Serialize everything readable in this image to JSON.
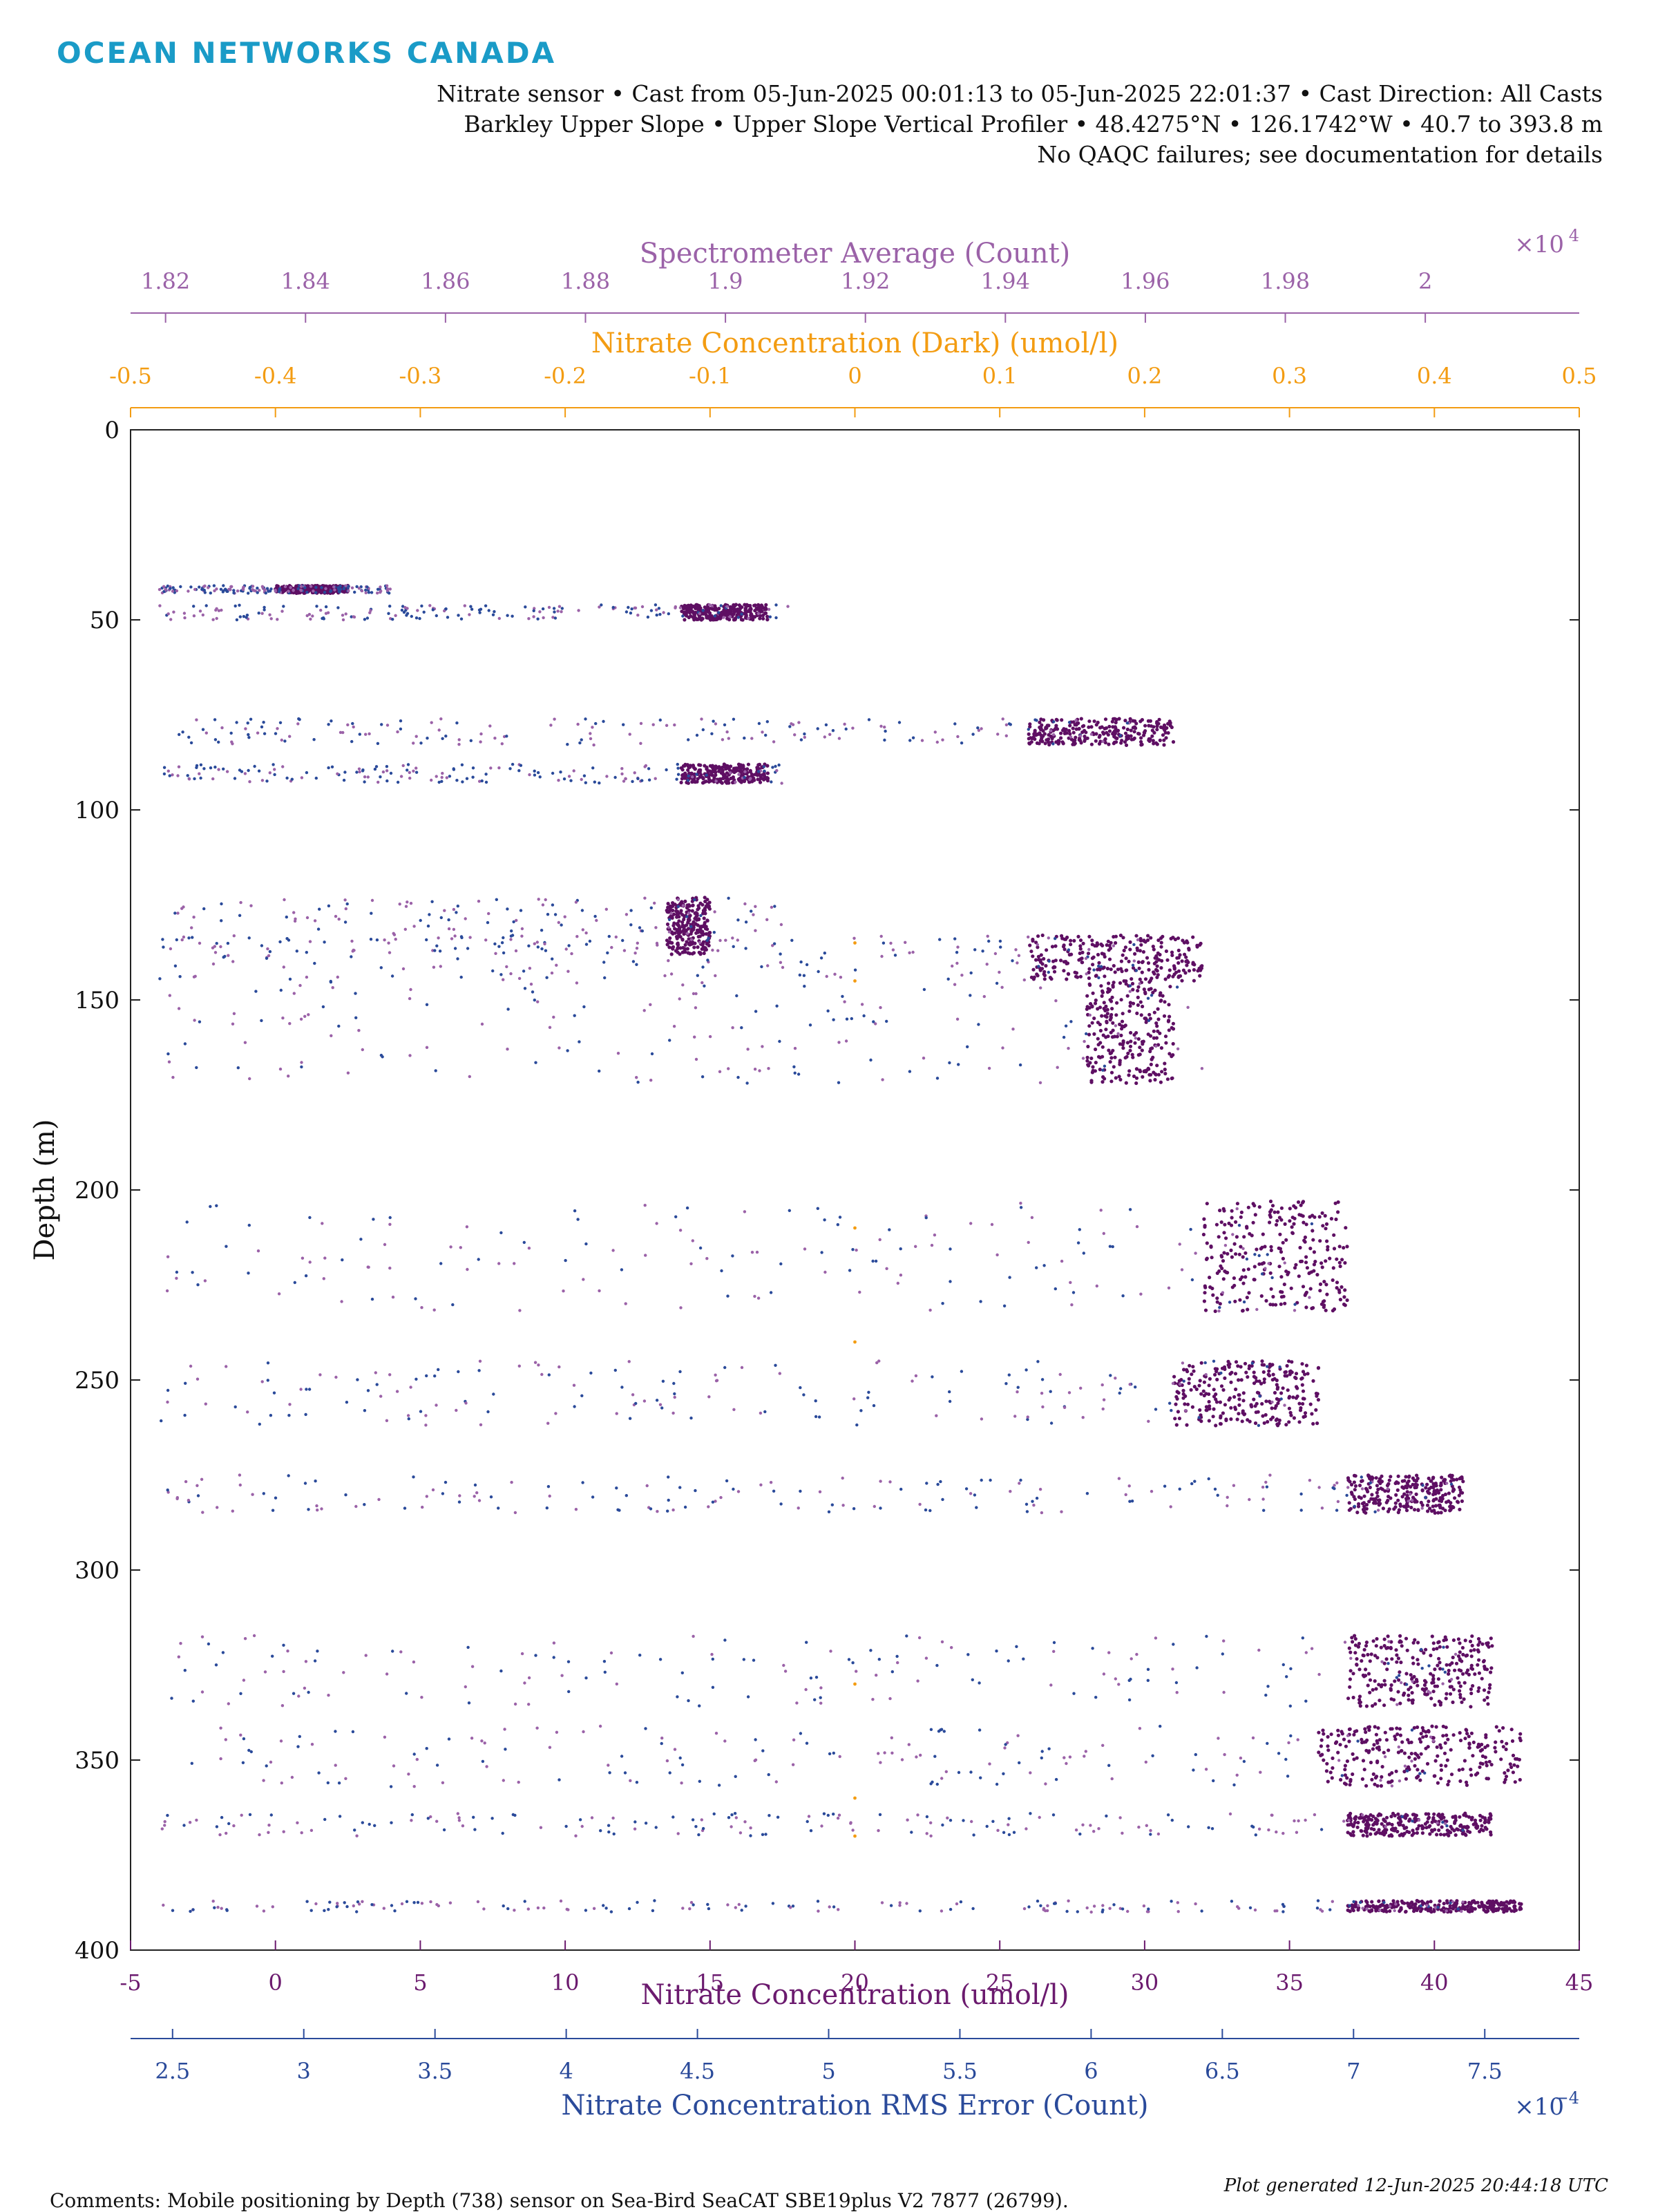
{
  "header": {
    "logo": "OCEAN NETWORKS CANADA",
    "line1": "Nitrate sensor • Cast from 05-Jun-2025 00:01:13 to 05-Jun-2025 22:01:37 • Cast Direction: All Casts",
    "line2": "Barkley Upper Slope • Upper Slope Vertical Profiler • 48.4275°N • 126.1742°W • 40.7 to 393.8 m",
    "line3": "No QAQC failures; see documentation for details"
  },
  "footer": {
    "comments": "Comments: Mobile positioning by Depth (738) sensor on Sea-Bird SeaCAT SBE19plus V2 7877 (26799).",
    "generated": "Plot generated 12-Jun-2025 20:44:18 UTC"
  },
  "chart_data": {
    "type": "scatter",
    "grid": false,
    "legend": "none",
    "y_axis": {
      "label": "Depth (m)",
      "range": [
        0,
        400
      ],
      "reversed": true,
      "ticks": [
        0,
        50,
        100,
        150,
        200,
        250,
        300,
        350,
        400
      ],
      "tick_labels": [
        "0",
        "50",
        "100",
        "150",
        "200",
        "250",
        "300",
        "350",
        "400"
      ]
    },
    "x_axes": [
      {
        "key": "spec",
        "label": "Spectrometer Average (Count)",
        "position": "top-outer",
        "color": "#9b62a8",
        "range": [
          18150,
          20220
        ],
        "ticks": [
          18200,
          18400,
          18600,
          18800,
          19000,
          19200,
          19400,
          19600,
          19800,
          20000
        ],
        "tick_labels": [
          "1.82",
          "1.84",
          "1.86",
          "1.88",
          "1.9",
          "1.92",
          "1.94",
          "1.96",
          "1.98",
          "2"
        ],
        "exponent": "×10",
        "exponent_power": "4"
      },
      {
        "key": "dark",
        "label": "Nitrate Concentration (Dark) (umol/l)",
        "position": "top-inner",
        "color": "#f39c12",
        "range": [
          -0.5,
          0.5
        ],
        "ticks": [
          -0.5,
          -0.4,
          -0.3,
          -0.2,
          -0.1,
          0,
          0.1,
          0.2,
          0.3,
          0.4,
          0.5
        ],
        "tick_labels": [
          "-0.5",
          "-0.4",
          "-0.3",
          "-0.2",
          "-0.1",
          "0",
          "0.1",
          "0.2",
          "0.3",
          "0.4",
          "0.5"
        ]
      },
      {
        "key": "nitrate",
        "label": "Nitrate Concentration (umol/l)",
        "position": "bottom-inner",
        "color": "#6b1a6e",
        "range": [
          -5,
          45
        ],
        "ticks": [
          -5,
          0,
          5,
          10,
          15,
          20,
          25,
          30,
          35,
          40,
          45
        ],
        "tick_labels": [
          "-5",
          "0",
          "5",
          "10",
          "15",
          "20",
          "25",
          "30",
          "35",
          "40",
          "45"
        ]
      },
      {
        "key": "rms",
        "label": "Nitrate Concentration RMS Error (Count)",
        "position": "bottom-outer",
        "color": "#2a4a9a",
        "range": [
          2.34,
          7.86
        ],
        "ticks": [
          2.5,
          3,
          3.5,
          4,
          4.5,
          5,
          5.5,
          6,
          6.5,
          7,
          7.5
        ],
        "tick_labels": [
          "2.5",
          "3",
          "3.5",
          "4",
          "4.5",
          "5",
          "5.5",
          "6",
          "6.5",
          "7",
          "7.5"
        ],
        "exponent": "×10",
        "exponent_power": "−4"
      }
    ],
    "series_colors": {
      "nitrate": "#5e0f63",
      "spectrometer": "#9b62a8",
      "rms": "#2a4a9a",
      "dark": "#f39c12"
    },
    "depth_bins": [
      {
        "depth": [
          41,
          43
        ],
        "nitrate_cluster": [
          0,
          2.5
        ]
      },
      {
        "depth": [
          46,
          50
        ],
        "nitrate_cluster": [
          14,
          17
        ]
      },
      {
        "depth": [
          76,
          83
        ],
        "nitrate_cluster": [
          26,
          31
        ]
      },
      {
        "depth": [
          88,
          93
        ],
        "nitrate_cluster": [
          14,
          17
        ]
      },
      {
        "depth": [
          123,
          138
        ],
        "nitrate_cluster": [
          13.5,
          15
        ]
      },
      {
        "depth": [
          133,
          145
        ],
        "nitrate_cluster": [
          26,
          32
        ]
      },
      {
        "depth": [
          145,
          172
        ],
        "nitrate_cluster": [
          28,
          31
        ]
      },
      {
        "depth": [
          203,
          232
        ],
        "nitrate_cluster": [
          32,
          37
        ]
      },
      {
        "depth": [
          245,
          262
        ],
        "nitrate_cluster": [
          31,
          36
        ]
      },
      {
        "depth": [
          275,
          285
        ],
        "nitrate_cluster": [
          37,
          41
        ]
      },
      {
        "depth": [
          317,
          336
        ],
        "nitrate_cluster": [
          37,
          42
        ]
      },
      {
        "depth": [
          341,
          357
        ],
        "nitrate_cluster": [
          36,
          43
        ]
      },
      {
        "depth": [
          364,
          370
        ],
        "nitrate_cluster": [
          37,
          42
        ]
      },
      {
        "depth": [
          387,
          390
        ],
        "nitrate_cluster": [
          37,
          43
        ]
      }
    ]
  }
}
